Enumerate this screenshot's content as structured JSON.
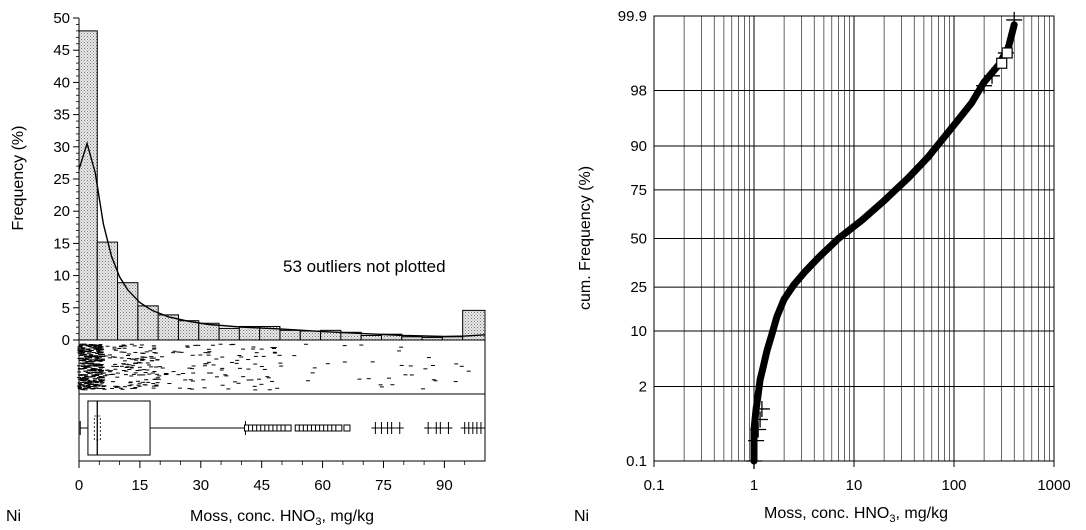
{
  "panel_labels": {
    "left": "Ni",
    "right": "Ni"
  },
  "chart_data": [
    {
      "type": "bar",
      "subtype": "histogram-with-density-dotplot-boxplot",
      "title": "",
      "xlabel_prefix": "Moss, conc. HNO",
      "xlabel_subscript": "3",
      "xlabel_suffix": ", mg/kg",
      "ylabel": "Frequency (%)",
      "xlim": [
        0,
        100
      ],
      "ylim": [
        0,
        50
      ],
      "xticks": [
        0,
        15,
        30,
        45,
        60,
        75,
        90
      ],
      "yticks": [
        0,
        5,
        10,
        15,
        20,
        25,
        30,
        35,
        40,
        45,
        50
      ],
      "annotation": "53 outliers not plotted",
      "grid": false,
      "bins": [
        {
          "x0": 0,
          "x1": 4.5,
          "value": 48
        },
        {
          "x0": 4.5,
          "x1": 9.5,
          "value": 15.2
        },
        {
          "x0": 9.5,
          "x1": 14.5,
          "value": 8.9
        },
        {
          "x0": 14.5,
          "x1": 19.5,
          "value": 5.3
        },
        {
          "x0": 19.5,
          "x1": 24.5,
          "value": 3.9
        },
        {
          "x0": 24.5,
          "x1": 29.5,
          "value": 3
        },
        {
          "x0": 29.5,
          "x1": 34.5,
          "value": 2.6
        },
        {
          "x0": 34.5,
          "x1": 39.5,
          "value": 1.8
        },
        {
          "x0": 39.5,
          "x1": 44.5,
          "value": 2.1
        },
        {
          "x0": 44.5,
          "x1": 49.5,
          "value": 2.1
        },
        {
          "x0": 49.5,
          "x1": 54.5,
          "value": 1.5
        },
        {
          "x0": 54.5,
          "x1": 59.5,
          "value": 1.4
        },
        {
          "x0": 59.5,
          "x1": 64.5,
          "value": 1.5
        },
        {
          "x0": 64.5,
          "x1": 69.5,
          "value": 1.2
        },
        {
          "x0": 69.5,
          "x1": 74.5,
          "value": 0.7
        },
        {
          "x0": 74.5,
          "x1": 79.5,
          "value": 0.9
        },
        {
          "x0": 79.5,
          "x1": 84.5,
          "value": 0.5
        },
        {
          "x0": 84.5,
          "x1": 89.5,
          "value": 0.4
        },
        {
          "x0": 89.5,
          "x1": 94.5,
          "value": 0.5
        },
        {
          "x0": 94.5,
          "x1": 100,
          "value": 4.6
        }
      ],
      "density": [
        [
          0,
          26.5
        ],
        [
          2,
          30.5
        ],
        [
          4,
          26
        ],
        [
          6,
          18
        ],
        [
          8,
          13
        ],
        [
          10,
          9.8
        ],
        [
          12,
          7.8
        ],
        [
          15,
          5.8
        ],
        [
          18,
          4.6
        ],
        [
          22,
          3.6
        ],
        [
          27,
          2.9
        ],
        [
          32,
          2.4
        ],
        [
          40,
          2
        ],
        [
          50,
          1.7
        ],
        [
          60,
          1.3
        ],
        [
          70,
          1
        ],
        [
          80,
          0.7
        ],
        [
          90,
          0.55
        ],
        [
          95,
          0.6
        ],
        [
          100,
          0.8
        ]
      ],
      "boxplot": {
        "whisker_low": 0.3,
        "q1": 2.2,
        "median": 4.5,
        "q3": 17.5,
        "whisker_high": 41,
        "outliers_box": [
          41.5,
          42.5,
          43.5,
          44.5,
          45.5,
          46.5,
          47.5,
          48.5,
          49.5,
          50.5,
          51.5,
          54,
          55,
          56,
          57,
          58,
          59,
          60,
          61,
          62,
          63,
          64,
          66
        ],
        "outliers_cross": [
          73,
          74.5,
          76,
          77,
          79,
          86,
          88,
          89,
          91,
          95,
          96,
          97,
          98,
          99
        ]
      }
    },
    {
      "type": "scatter",
      "subtype": "cumulative-probability-plot",
      "title": "",
      "xlabel_prefix": "Moss, conc. HNO",
      "xlabel_subscript": "3",
      "xlabel_suffix": ", mg/kg",
      "ylabel": "cum. Frequency (%)",
      "xscale": "log",
      "yscale": "probability",
      "xlim": [
        0.1,
        1000
      ],
      "ylim": [
        0.1,
        99.9
      ],
      "xtick_labels": [
        "0.1",
        "1",
        "10",
        "100",
        "1000"
      ],
      "xticks": [
        0.1,
        1,
        10,
        100,
        1000
      ],
      "ytick_labels": [
        "0.1",
        "2",
        "10",
        "25",
        "50",
        "75",
        "90",
        "98",
        "99.9"
      ],
      "yticks": [
        0.1,
        2,
        10,
        25,
        50,
        75,
        90,
        98,
        99.9
      ],
      "grid": true,
      "curve_points": [
        [
          1.0,
          0.1
        ],
        [
          1.0,
          0.4
        ],
        [
          1.05,
          0.9
        ],
        [
          1.1,
          1.5
        ],
        [
          1.15,
          2.5
        ],
        [
          1.25,
          4
        ],
        [
          1.35,
          6
        ],
        [
          1.5,
          9
        ],
        [
          1.7,
          14
        ],
        [
          2.0,
          20
        ],
        [
          2.5,
          26
        ],
        [
          3.2,
          32
        ],
        [
          4.5,
          40
        ],
        [
          7,
          50
        ],
        [
          12,
          60
        ],
        [
          20,
          70
        ],
        [
          35,
          80
        ],
        [
          55,
          87
        ],
        [
          80,
          92
        ],
        [
          110,
          95
        ],
        [
          150,
          97
        ],
        [
          200,
          98.5
        ],
        [
          280,
          99.2
        ],
        [
          350,
          99.6
        ],
        [
          400,
          99.85
        ]
      ],
      "markers_cross": [
        [
          1.0,
          0.1
        ],
        [
          1.05,
          0.25
        ],
        [
          1.1,
          0.4
        ],
        [
          1.15,
          0.6
        ],
        [
          1.2,
          0.9
        ],
        [
          200,
          98.3
        ],
        [
          240,
          98.8
        ],
        [
          330,
          99.5
        ],
        [
          400,
          99.88
        ]
      ],
      "markers_box": [
        [
          300,
          99.25
        ],
        [
          340,
          99.5
        ]
      ]
    }
  ]
}
